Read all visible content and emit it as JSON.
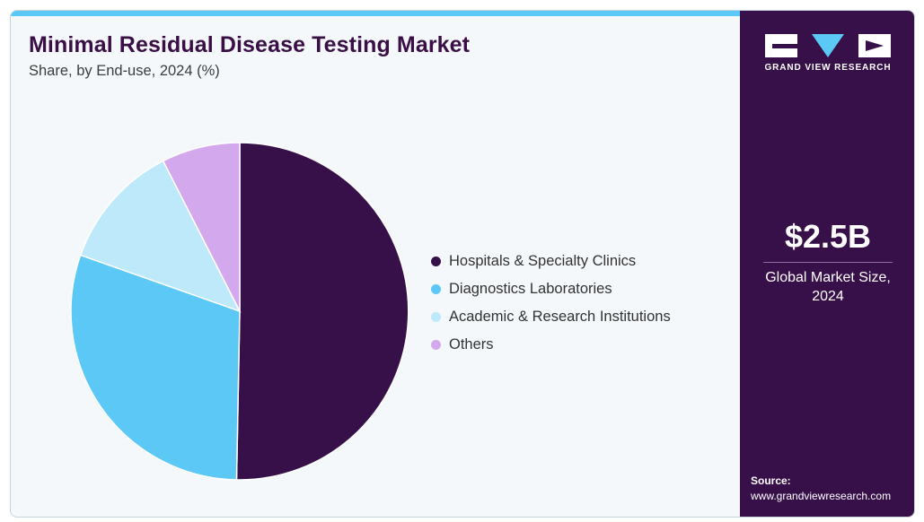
{
  "header": {
    "title": "Minimal Residual Disease Testing Market",
    "subtitle": "Share, by End-use, 2024 (%)"
  },
  "chart_data": {
    "type": "pie",
    "categories": [
      "Hospitals & Specialty Clinics",
      "Diagnostics Laboratories",
      "Academic & Research Institutions",
      "Others"
    ],
    "values": [
      50.3,
      30.1,
      12.1,
      7.5
    ],
    "colors": [
      "#37104a",
      "#5bc8f5",
      "#bde9fb",
      "#d4a8ec"
    ],
    "legend_position": "right"
  },
  "sidebar": {
    "logo_text": "GRAND VIEW RESEARCH",
    "market_value": "$2.5B",
    "market_label": "Global Market Size, 2024",
    "source_label": "Source:",
    "source_url": "www.grandviewresearch.com"
  }
}
